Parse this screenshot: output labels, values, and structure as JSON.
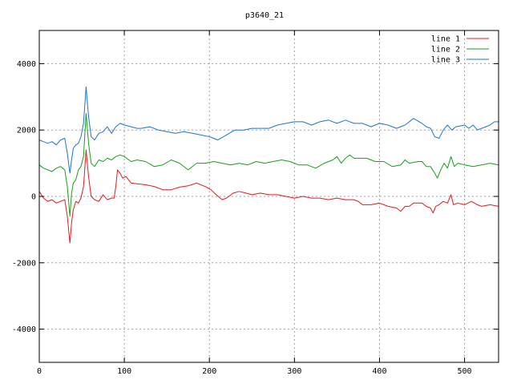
{
  "chart_data": {
    "type": "line",
    "title": "p3640_21",
    "xlabel": "",
    "ylabel": "",
    "xlim": [
      0,
      540
    ],
    "ylim": [
      -5000,
      5000
    ],
    "x_ticks": [
      0,
      100,
      200,
      300,
      400,
      500
    ],
    "y_ticks": [
      -4000,
      -2000,
      0,
      2000,
      4000
    ],
    "grid": true,
    "legend_position": "top-right",
    "series": [
      {
        "name": "line 1",
        "color": "#e41a1c",
        "points": [
          [
            0,
            150
          ],
          [
            5,
            -50
          ],
          [
            10,
            -150
          ],
          [
            15,
            -100
          ],
          [
            20,
            -200
          ],
          [
            25,
            -150
          ],
          [
            30,
            -100
          ],
          [
            33,
            -600
          ],
          [
            36,
            -1400
          ],
          [
            38,
            -800
          ],
          [
            40,
            -400
          ],
          [
            43,
            -150
          ],
          [
            46,
            -200
          ],
          [
            49,
            -50
          ],
          [
            52,
            300
          ],
          [
            55,
            1400
          ],
          [
            58,
            600
          ],
          [
            61,
            0
          ],
          [
            65,
            -100
          ],
          [
            70,
            -150
          ],
          [
            75,
            50
          ],
          [
            80,
            -100
          ],
          [
            85,
            -50
          ],
          [
            88,
            -50
          ],
          [
            90,
            300
          ],
          [
            92,
            800
          ],
          [
            95,
            700
          ],
          [
            98,
            550
          ],
          [
            102,
            600
          ],
          [
            108,
            400
          ],
          [
            115,
            380
          ],
          [
            125,
            350
          ],
          [
            135,
            300
          ],
          [
            145,
            200
          ],
          [
            155,
            200
          ],
          [
            165,
            280
          ],
          [
            175,
            320
          ],
          [
            185,
            400
          ],
          [
            195,
            300
          ],
          [
            202,
            200
          ],
          [
            208,
            50
          ],
          [
            215,
            -100
          ],
          [
            220,
            -50
          ],
          [
            228,
            100
          ],
          [
            235,
            150
          ],
          [
            243,
            100
          ],
          [
            250,
            50
          ],
          [
            260,
            100
          ],
          [
            270,
            50
          ],
          [
            280,
            50
          ],
          [
            290,
            0
          ],
          [
            300,
            -50
          ],
          [
            310,
            0
          ],
          [
            320,
            -50
          ],
          [
            330,
            -50
          ],
          [
            340,
            -100
          ],
          [
            350,
            -50
          ],
          [
            360,
            -100
          ],
          [
            370,
            -100
          ],
          [
            375,
            -150
          ],
          [
            380,
            -250
          ],
          [
            390,
            -250
          ],
          [
            400,
            -200
          ],
          [
            410,
            -300
          ],
          [
            420,
            -350
          ],
          [
            425,
            -450
          ],
          [
            430,
            -300
          ],
          [
            435,
            -300
          ],
          [
            440,
            -200
          ],
          [
            445,
            -200
          ],
          [
            450,
            -200
          ],
          [
            455,
            -300
          ],
          [
            460,
            -350
          ],
          [
            463,
            -500
          ],
          [
            466,
            -300
          ],
          [
            470,
            -250
          ],
          [
            475,
            -150
          ],
          [
            480,
            -200
          ],
          [
            484,
            50
          ],
          [
            487,
            -250
          ],
          [
            492,
            -200
          ],
          [
            500,
            -250
          ],
          [
            508,
            -150
          ],
          [
            515,
            -250
          ],
          [
            520,
            -300
          ],
          [
            530,
            -250
          ],
          [
            540,
            -300
          ]
        ]
      },
      {
        "name": "line 2",
        "color": "#1a9e1a",
        "points": [
          [
            0,
            950
          ],
          [
            5,
            850
          ],
          [
            10,
            800
          ],
          [
            15,
            750
          ],
          [
            20,
            850
          ],
          [
            25,
            900
          ],
          [
            30,
            800
          ],
          [
            33,
            300
          ],
          [
            36,
            -600
          ],
          [
            38,
            100
          ],
          [
            40,
            400
          ],
          [
            43,
            500
          ],
          [
            46,
            800
          ],
          [
            49,
            900
          ],
          [
            52,
            1200
          ],
          [
            55,
            2500
          ],
          [
            58,
            1600
          ],
          [
            61,
            1000
          ],
          [
            65,
            900
          ],
          [
            70,
            1100
          ],
          [
            75,
            1050
          ],
          [
            80,
            1150
          ],
          [
            85,
            1100
          ],
          [
            90,
            1200
          ],
          [
            95,
            1250
          ],
          [
            100,
            1200
          ],
          [
            108,
            1050
          ],
          [
            115,
            1100
          ],
          [
            125,
            1050
          ],
          [
            135,
            900
          ],
          [
            145,
            950
          ],
          [
            155,
            1100
          ],
          [
            165,
            1000
          ],
          [
            175,
            800
          ],
          [
            185,
            1000
          ],
          [
            195,
            1000
          ],
          [
            205,
            1050
          ],
          [
            215,
            1000
          ],
          [
            225,
            950
          ],
          [
            235,
            1000
          ],
          [
            245,
            950
          ],
          [
            255,
            1050
          ],
          [
            265,
            1000
          ],
          [
            275,
            1050
          ],
          [
            285,
            1100
          ],
          [
            295,
            1050
          ],
          [
            305,
            950
          ],
          [
            315,
            950
          ],
          [
            325,
            850
          ],
          [
            335,
            1000
          ],
          [
            345,
            1100
          ],
          [
            350,
            1200
          ],
          [
            355,
            1000
          ],
          [
            360,
            1150
          ],
          [
            365,
            1250
          ],
          [
            370,
            1150
          ],
          [
            375,
            1150
          ],
          [
            385,
            1150
          ],
          [
            395,
            1050
          ],
          [
            405,
            1050
          ],
          [
            415,
            900
          ],
          [
            425,
            950
          ],
          [
            430,
            1100
          ],
          [
            435,
            1000
          ],
          [
            445,
            1050
          ],
          [
            450,
            1050
          ],
          [
            455,
            900
          ],
          [
            460,
            900
          ],
          [
            465,
            700
          ],
          [
            468,
            550
          ],
          [
            472,
            800
          ],
          [
            476,
            1000
          ],
          [
            480,
            850
          ],
          [
            484,
            1200
          ],
          [
            488,
            900
          ],
          [
            492,
            1000
          ],
          [
            500,
            950
          ],
          [
            510,
            900
          ],
          [
            520,
            950
          ],
          [
            530,
            1000
          ],
          [
            540,
            950
          ]
        ]
      },
      {
        "name": "line 3",
        "color": "#1e74d0",
        "points": [
          [
            0,
            1700
          ],
          [
            5,
            1650
          ],
          [
            10,
            1600
          ],
          [
            15,
            1650
          ],
          [
            20,
            1550
          ],
          [
            25,
            1700
          ],
          [
            30,
            1750
          ],
          [
            33,
            1300
          ],
          [
            36,
            700
          ],
          [
            38,
            1100
          ],
          [
            40,
            1450
          ],
          [
            43,
            1550
          ],
          [
            46,
            1600
          ],
          [
            49,
            1800
          ],
          [
            52,
            2200
          ],
          [
            55,
            3300
          ],
          [
            58,
            2400
          ],
          [
            61,
            1800
          ],
          [
            65,
            1700
          ],
          [
            70,
            1900
          ],
          [
            75,
            1950
          ],
          [
            80,
            2100
          ],
          [
            85,
            1900
          ],
          [
            90,
            2100
          ],
          [
            95,
            2200
          ],
          [
            100,
            2150
          ],
          [
            108,
            2100
          ],
          [
            115,
            2050
          ],
          [
            120,
            2050
          ],
          [
            130,
            2100
          ],
          [
            140,
            2000
          ],
          [
            150,
            1950
          ],
          [
            160,
            1900
          ],
          [
            170,
            1950
          ],
          [
            180,
            1900
          ],
          [
            190,
            1850
          ],
          [
            200,
            1800
          ],
          [
            210,
            1700
          ],
          [
            220,
            1850
          ],
          [
            230,
            2000
          ],
          [
            240,
            2000
          ],
          [
            250,
            2050
          ],
          [
            260,
            2050
          ],
          [
            270,
            2050
          ],
          [
            280,
            2150
          ],
          [
            290,
            2200
          ],
          [
            300,
            2250
          ],
          [
            310,
            2250
          ],
          [
            320,
            2150
          ],
          [
            330,
            2250
          ],
          [
            340,
            2300
          ],
          [
            350,
            2200
          ],
          [
            360,
            2300
          ],
          [
            370,
            2200
          ],
          [
            380,
            2200
          ],
          [
            390,
            2100
          ],
          [
            400,
            2200
          ],
          [
            410,
            2150
          ],
          [
            420,
            2050
          ],
          [
            430,
            2150
          ],
          [
            440,
            2350
          ],
          [
            450,
            2200
          ],
          [
            455,
            2100
          ],
          [
            460,
            2050
          ],
          [
            465,
            1800
          ],
          [
            470,
            1750
          ],
          [
            475,
            2000
          ],
          [
            480,
            2150
          ],
          [
            485,
            2000
          ],
          [
            490,
            2100
          ],
          [
            500,
            2150
          ],
          [
            505,
            2050
          ],
          [
            510,
            2150
          ],
          [
            515,
            2000
          ],
          [
            520,
            2050
          ],
          [
            525,
            2100
          ],
          [
            530,
            2150
          ],
          [
            535,
            2250
          ],
          [
            540,
            2250
          ]
        ]
      }
    ]
  }
}
